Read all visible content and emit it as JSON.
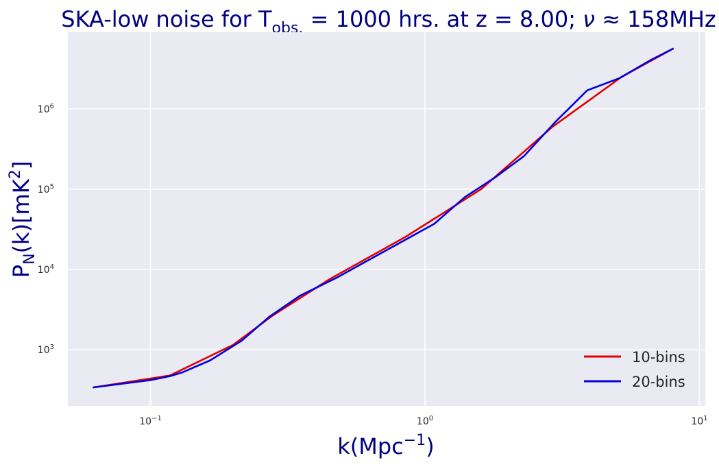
{
  "chart_data": {
    "type": "line",
    "title": {
      "prefix": "SKA-low noise for T",
      "prefix_sub": "obs.",
      "middle": " = 1000 hrs. at z = 8.00; ",
      "nu": "ν",
      "suffix": " ≈ 158MHz"
    },
    "xlabel": {
      "main": "k(Mpc",
      "sup": "−1",
      "close": ")"
    },
    "ylabel": {
      "p": "P",
      "sub": "N",
      "rest": "(k)[mK",
      "sup": "2",
      "close": "]"
    },
    "x_scale": "log",
    "y_scale": "log",
    "xlim": [
      0.05,
      10.5
    ],
    "ylim": [
      200,
      9000000
    ],
    "x_ticks": [
      {
        "value": 0.1,
        "base": "10",
        "exp": "−1"
      },
      {
        "value": 1,
        "base": "10",
        "exp": "0"
      },
      {
        "value": 10,
        "base": "10",
        "exp": "1"
      }
    ],
    "y_ticks": [
      {
        "value": 1000,
        "base": "10",
        "exp": "3"
      },
      {
        "value": 10000,
        "base": "10",
        "exp": "4"
      },
      {
        "value": 100000,
        "base": "10",
        "exp": "5"
      },
      {
        "value": 1000000,
        "base": "10",
        "exp": "6"
      }
    ],
    "grid": true,
    "legend_position": "bottom-right",
    "series": [
      {
        "name": "10-bins",
        "color": "#e00000",
        "x": [
          0.062,
          0.118,
          0.2,
          0.28,
          0.45,
          0.85,
          1.6,
          2.9,
          5.2,
          8.0
        ],
        "y": [
          340,
          480,
          1150,
          2700,
          7600,
          25500,
          100000,
          590000,
          2500000,
          5600000
        ]
      },
      {
        "name": "20-bins",
        "color": "#0000e0",
        "x": [
          0.062,
          0.1,
          0.118,
          0.13,
          0.165,
          0.215,
          0.27,
          0.35,
          0.48,
          0.62,
          0.8,
          1.08,
          1.4,
          1.8,
          2.3,
          3.0,
          3.9,
          5.1,
          6.6,
          8.0
        ],
        "y": [
          340,
          420,
          470,
          520,
          740,
          1300,
          2550,
          4700,
          8000,
          13000,
          21000,
          37000,
          80000,
          140000,
          260000,
          700000,
          1700000,
          2400000,
          4000000,
          5600000
        ]
      }
    ]
  },
  "colors": {
    "plot_background": "#eaeaf2",
    "grid": "#ffffff",
    "title": "#000080",
    "axis_label": "#000080",
    "tick_label": "#262626"
  }
}
